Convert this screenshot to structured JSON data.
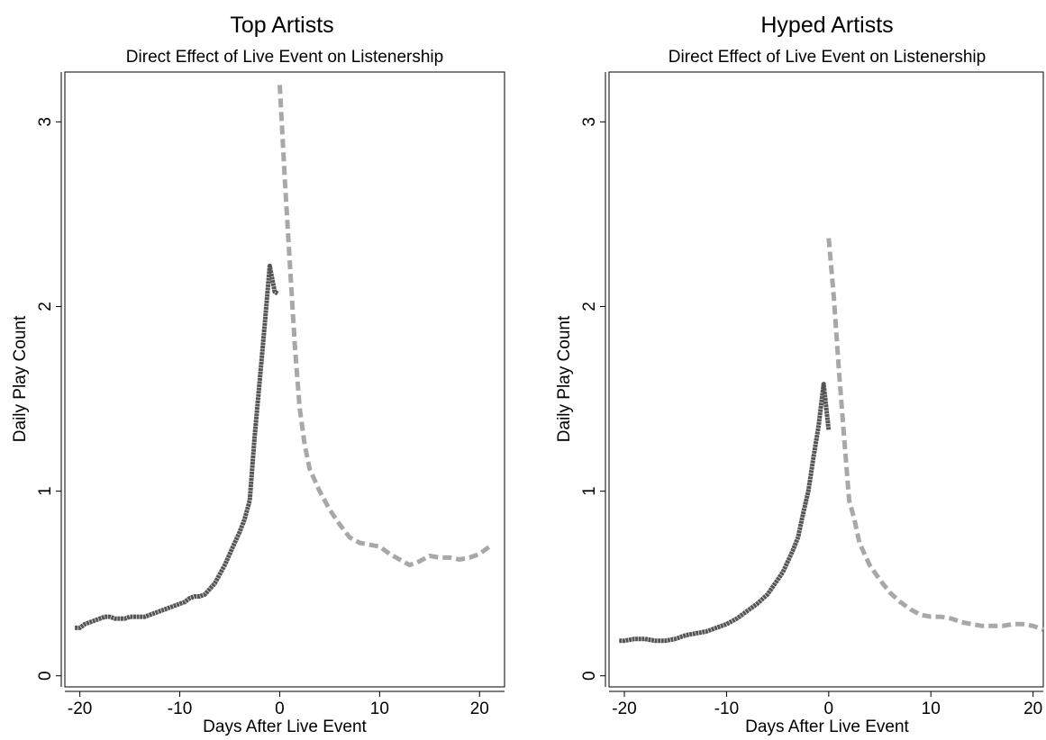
{
  "chart_data": [
    {
      "type": "line",
      "title": "Top Artists",
      "subtitle": "Direct Effect of Live Event on Listenership",
      "xlabel": "Days After Live Event",
      "ylabel": "Daily Play Count",
      "xlim": [
        -21.5,
        22.5
      ],
      "ylim": [
        -0.06,
        3.27
      ],
      "xticks": [
        -20,
        -10,
        0,
        10,
        20
      ],
      "yticks": [
        0,
        1,
        2,
        3
      ],
      "series": [
        {
          "style": "solid",
          "color": "#555555",
          "x": [
            -20.5,
            -20,
            -19.5,
            -19,
            -18.5,
            -18,
            -17.5,
            -17,
            -16.5,
            -16,
            -15.5,
            -15,
            -14.5,
            -14,
            -13.5,
            -13,
            -12.5,
            -12,
            -11.5,
            -11,
            -10.5,
            -10,
            -9.5,
            -9,
            -8.5,
            -8,
            -7.5,
            -7,
            -6.5,
            -6,
            -5.5,
            -5,
            -4.5,
            -4,
            -3.5,
            -3,
            -2.5,
            -2,
            -1.5,
            -1,
            -0.5,
            -0.2
          ],
          "y": [
            0.26,
            0.26,
            0.28,
            0.29,
            0.3,
            0.31,
            0.32,
            0.32,
            0.31,
            0.31,
            0.31,
            0.32,
            0.32,
            0.32,
            0.32,
            0.33,
            0.34,
            0.35,
            0.36,
            0.37,
            0.38,
            0.39,
            0.4,
            0.42,
            0.43,
            0.43,
            0.44,
            0.47,
            0.5,
            0.55,
            0.6,
            0.66,
            0.72,
            0.78,
            0.85,
            0.95,
            1.3,
            1.6,
            1.9,
            2.22,
            2.08,
            2.07
          ]
        },
        {
          "style": "dashed",
          "color": "#a8a8a8",
          "x": [
            0,
            0.5,
            1,
            1.5,
            2,
            2.5,
            3,
            3.5,
            4,
            5,
            6,
            7,
            8,
            9,
            10,
            11,
            12,
            13,
            14,
            15,
            16,
            17,
            18,
            19,
            20,
            21
          ],
          "y": [
            3.2,
            2.7,
            2.25,
            1.8,
            1.45,
            1.25,
            1.12,
            1.06,
            1.0,
            0.9,
            0.82,
            0.75,
            0.72,
            0.71,
            0.7,
            0.66,
            0.63,
            0.6,
            0.62,
            0.65,
            0.64,
            0.64,
            0.63,
            0.64,
            0.66,
            0.7
          ]
        }
      ]
    },
    {
      "type": "line",
      "title": "Hyped Artists",
      "subtitle": "Direct Effect of Live Event on Listenership",
      "xlabel": "Days After Live Event",
      "ylabel": "Daily Play Count",
      "xlim": [
        -21.5,
        21
      ],
      "ylim": [
        -0.06,
        3.27
      ],
      "xticks": [
        -20,
        -10,
        0,
        10,
        20
      ],
      "yticks": [
        0,
        1,
        2,
        3
      ],
      "series": [
        {
          "style": "solid",
          "color": "#555555",
          "x": [
            -20.5,
            -20,
            -19,
            -18,
            -17,
            -16,
            -15,
            -14,
            -13,
            -12,
            -11,
            -10,
            -9,
            -8,
            -7,
            -6,
            -5.5,
            -5,
            -4.5,
            -4,
            -3.5,
            -3,
            -2.5,
            -2,
            -1.5,
            -1,
            -0.5,
            0
          ],
          "y": [
            0.19,
            0.19,
            0.2,
            0.2,
            0.19,
            0.19,
            0.2,
            0.22,
            0.23,
            0.24,
            0.26,
            0.28,
            0.31,
            0.35,
            0.39,
            0.44,
            0.48,
            0.52,
            0.56,
            0.62,
            0.68,
            0.75,
            0.88,
            1.0,
            1.18,
            1.35,
            1.58,
            1.33
          ]
        },
        {
          "style": "dashed",
          "color": "#a8a8a8",
          "x": [
            0,
            0.5,
            1,
            1.5,
            2,
            2.5,
            3,
            4,
            5,
            6,
            7,
            8,
            9,
            10,
            11,
            12,
            13,
            14,
            15,
            16,
            17,
            18,
            19,
            20,
            21
          ],
          "y": [
            2.37,
            2.05,
            1.65,
            1.3,
            0.95,
            0.85,
            0.72,
            0.6,
            0.52,
            0.45,
            0.4,
            0.36,
            0.33,
            0.32,
            0.32,
            0.31,
            0.29,
            0.28,
            0.27,
            0.27,
            0.27,
            0.28,
            0.28,
            0.27,
            0.25
          ]
        }
      ]
    }
  ]
}
